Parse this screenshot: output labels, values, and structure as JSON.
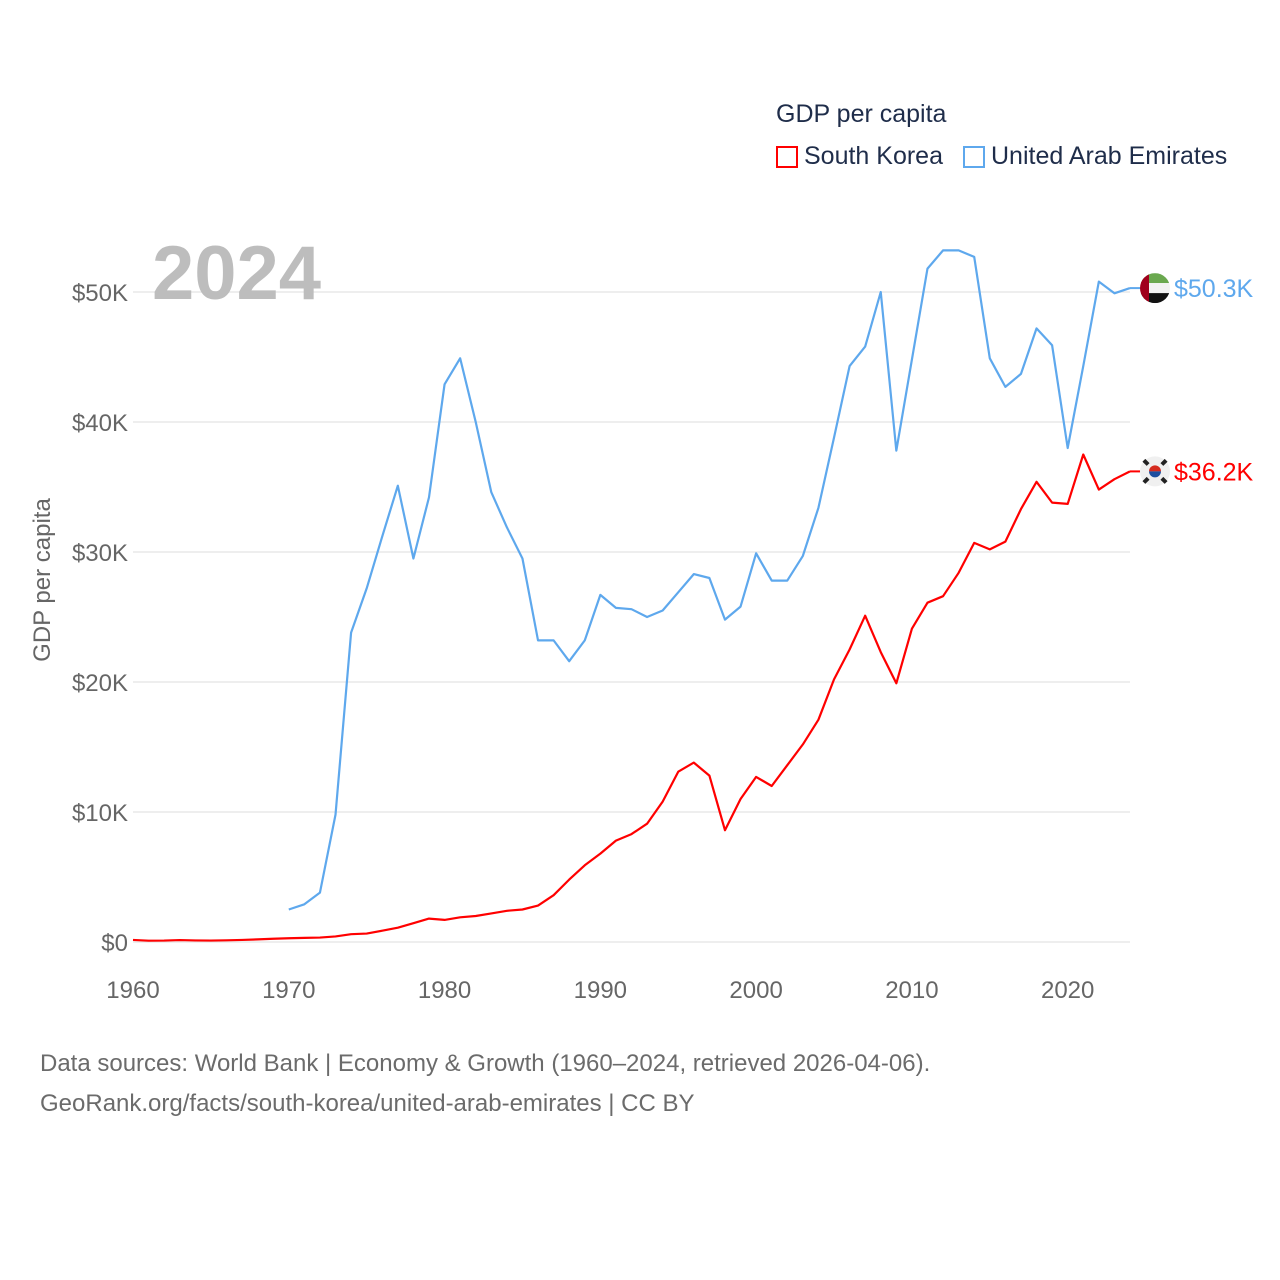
{
  "chart_data": {
    "type": "line",
    "title": "GDP per capita",
    "ylabel": "GDP per capita",
    "xlabel": "",
    "xlim": [
      1960,
      2024
    ],
    "ylim": [
      0,
      50000
    ],
    "x_ticks": [
      1960,
      1970,
      1980,
      1990,
      2000,
      2010,
      2020
    ],
    "x_tick_labels": [
      "1960",
      "1970",
      "1980",
      "1990",
      "2000",
      "2010",
      "2020"
    ],
    "y_ticks": [
      0,
      10000,
      20000,
      30000,
      40000,
      50000
    ],
    "y_tick_labels": [
      "$0",
      "$10K",
      "$20K",
      "$30K",
      "$40K",
      "$50K"
    ],
    "grid": true,
    "legend_position": "top-right",
    "current_year": "2024",
    "series": [
      {
        "name": "South Korea",
        "color": "#ff0000",
        "start_year": 1960,
        "end_label": "$36.2K",
        "values": [
          0.16,
          0.1,
          0.11,
          0.15,
          0.12,
          0.11,
          0.13,
          0.16,
          0.2,
          0.25,
          0.29,
          0.32,
          0.34,
          0.43,
          0.6,
          0.65,
          0.87,
          1.1,
          1.45,
          1.8,
          1.7,
          1.9,
          2.0,
          2.2,
          2.4,
          2.5,
          2.8,
          3.6,
          4.8,
          5.9,
          6.8,
          7.8,
          8.3,
          9.1,
          10.8,
          13.1,
          13.8,
          12.8,
          8.6,
          11.0,
          12.7,
          12.0,
          13.6,
          15.2,
          17.1,
          20.2,
          22.5,
          25.1,
          22.3,
          19.9,
          24.1,
          26.1,
          26.6,
          28.4,
          30.7,
          30.2,
          30.8,
          33.3,
          35.4,
          33.8,
          33.7,
          37.5,
          34.8,
          35.6,
          36.2
        ]
      },
      {
        "name": "United Arab Emirates",
        "color": "#5ea8ed",
        "start_year": 1970,
        "end_label": "$50.3K",
        "values": [
          2.5,
          2.9,
          3.8,
          9.8,
          23.8,
          27.2,
          31.2,
          35.1,
          29.5,
          34.2,
          42.9,
          44.9,
          40.0,
          34.6,
          31.9,
          29.5,
          23.2,
          23.2,
          21.6,
          23.2,
          26.7,
          25.7,
          25.6,
          25.0,
          25.5,
          26.9,
          28.3,
          28.0,
          24.8,
          25.8,
          29.9,
          27.8,
          27.8,
          29.7,
          33.4,
          38.8,
          44.3,
          45.8,
          50.0,
          37.8,
          44.8,
          51.8,
          53.2,
          53.2,
          52.7,
          44.9,
          42.7,
          43.7,
          47.2,
          45.9,
          38.0,
          44.3,
          50.8,
          49.9,
          50.3
        ]
      }
    ],
    "values_unit": "thousand USD"
  },
  "footer": {
    "line1": "Data sources: World Bank | Economy & Growth (1960–2024, retrieved 2026-04-06).",
    "line2": "GeoRank.org/facts/south-korea/united-arab-emirates | CC BY"
  }
}
